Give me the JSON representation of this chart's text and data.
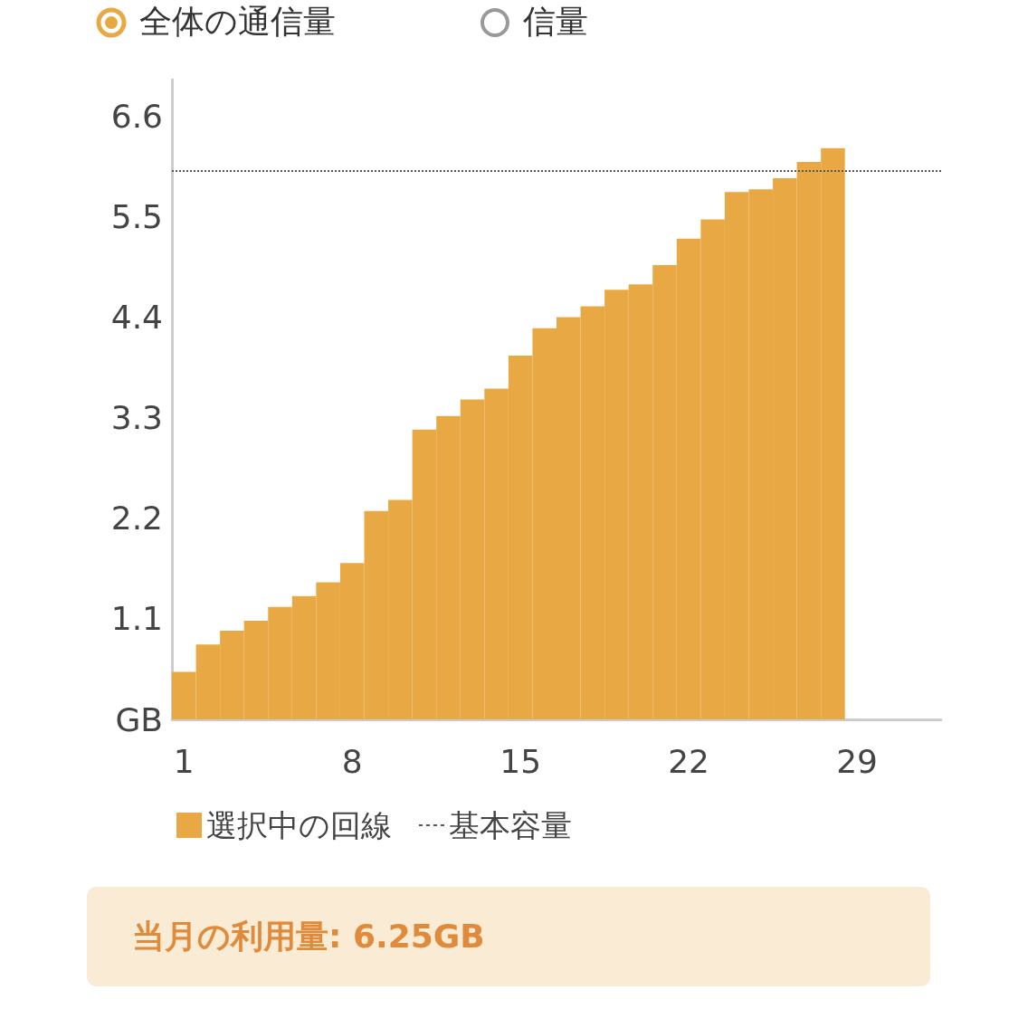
{
  "chart_data": {
    "type": "bar",
    "x": [
      1,
      2,
      3,
      4,
      5,
      6,
      7,
      8,
      9,
      10,
      11,
      12,
      13,
      14,
      15,
      16,
      17,
      18,
      19,
      20,
      21,
      22,
      23,
      24,
      25,
      26,
      27,
      28
    ],
    "series": [
      {
        "name": "選択中の回線",
        "color": "#e8a944",
        "values": [
          0.52,
          0.82,
          0.97,
          1.08,
          1.23,
          1.35,
          1.5,
          1.71,
          2.28,
          2.4,
          3.17,
          3.32,
          3.5,
          3.62,
          3.98,
          4.28,
          4.4,
          4.52,
          4.7,
          4.76,
          4.97,
          5.26,
          5.47,
          5.77,
          5.8,
          5.92,
          6.1,
          6.25
        ]
      }
    ],
    "xlim": [
      0.5,
      32.5
    ],
    "xticks": [
      1,
      8,
      15,
      22,
      29
    ],
    "ylim": [
      0,
      7
    ],
    "yticks": [
      {
        "value": 0,
        "label": "GB"
      },
      1.1,
      2.2,
      3.3,
      4.4,
      5.5,
      6.6
    ],
    "ref_lines": [
      {
        "axis": "y",
        "value": 6,
        "label": "基本容量",
        "color": "#555555",
        "line_style": "dotted"
      }
    ],
    "grid": false,
    "legend": "bottom",
    "annotations": [
      "全体の通信量",
      "信量",
      "当月の利用量: 6.25GB"
    ]
  }
}
